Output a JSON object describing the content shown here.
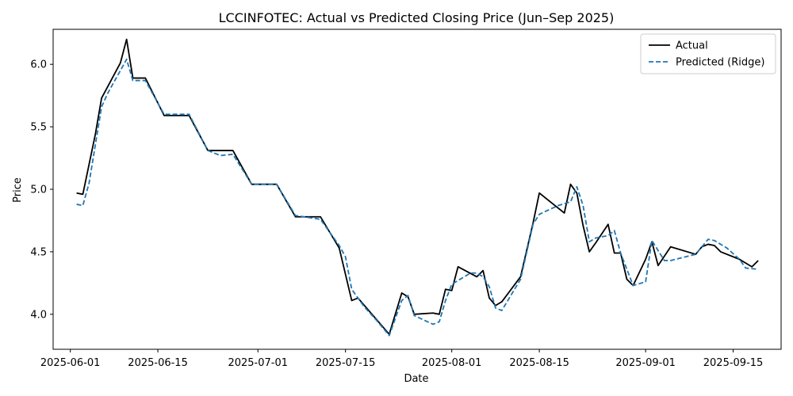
{
  "chart_data": {
    "type": "line",
    "title": "LCCINFOTEC: Actual vs Predicted Closing Price (Jun–Sep 2025)",
    "xlabel": "Date",
    "ylabel": "Price",
    "xlim": [
      "2025-05-29T06:00",
      "2025-09-22T16:00"
    ],
    "ylim": [
      3.72,
      6.28
    ],
    "x_ticks": [
      {
        "date": "2025-06-01",
        "label": "2025-06-01"
      },
      {
        "date": "2025-06-15",
        "label": "2025-06-15"
      },
      {
        "date": "2025-07-01",
        "label": "2025-07-01"
      },
      {
        "date": "2025-07-15",
        "label": "2025-07-15"
      },
      {
        "date": "2025-08-01",
        "label": "2025-08-01"
      },
      {
        "date": "2025-08-15",
        "label": "2025-08-15"
      },
      {
        "date": "2025-09-01",
        "label": "2025-09-01"
      },
      {
        "date": "2025-09-15",
        "label": "2025-09-15"
      }
    ],
    "y_ticks": [
      {
        "value": 4.0,
        "label": "4.0"
      },
      {
        "value": 4.5,
        "label": "4.5"
      },
      {
        "value": 5.0,
        "label": "5.0"
      },
      {
        "value": 5.5,
        "label": "5.5"
      },
      {
        "value": 6.0,
        "label": "6.0"
      }
    ],
    "grid": false,
    "legend_position": "top-right",
    "series": [
      {
        "name": "Actual",
        "color": "#000000",
        "dash": "solid",
        "points": [
          [
            "2025-06-02",
            4.97
          ],
          [
            "2025-06-03",
            4.96
          ],
          [
            "2025-06-05",
            5.44
          ],
          [
            "2025-06-06",
            5.73
          ],
          [
            "2025-06-09",
            6.01
          ],
          [
            "2025-06-10",
            6.2
          ],
          [
            "2025-06-11",
            5.89
          ],
          [
            "2025-06-13",
            5.89
          ],
          [
            "2025-06-16",
            5.59
          ],
          [
            "2025-06-20",
            5.59
          ],
          [
            "2025-06-23",
            5.31
          ],
          [
            "2025-06-27",
            5.31
          ],
          [
            "2025-06-30",
            5.04
          ],
          [
            "2025-07-04",
            5.04
          ],
          [
            "2025-07-07",
            4.78
          ],
          [
            "2025-07-11",
            4.78
          ],
          [
            "2025-07-14",
            4.53
          ],
          [
            "2025-07-16",
            4.11
          ],
          [
            "2025-07-17",
            4.13
          ],
          [
            "2025-07-22",
            3.84
          ],
          [
            "2025-07-24",
            4.17
          ],
          [
            "2025-07-25",
            4.14
          ],
          [
            "2025-07-26",
            4.0
          ],
          [
            "2025-07-29",
            4.01
          ],
          [
            "2025-07-30",
            4.0
          ],
          [
            "2025-07-31",
            4.2
          ],
          [
            "2025-08-01",
            4.19
          ],
          [
            "2025-08-02",
            4.38
          ],
          [
            "2025-08-05",
            4.3
          ],
          [
            "2025-08-06",
            4.35
          ],
          [
            "2025-08-07",
            4.13
          ],
          [
            "2025-08-08",
            4.07
          ],
          [
            "2025-08-09",
            4.1
          ],
          [
            "2025-08-12",
            4.3
          ],
          [
            "2025-08-14",
            4.73
          ],
          [
            "2025-08-15",
            4.97
          ],
          [
            "2025-08-19",
            4.81
          ],
          [
            "2025-08-20",
            5.04
          ],
          [
            "2025-08-21",
            4.97
          ],
          [
            "2025-08-22",
            4.71
          ],
          [
            "2025-08-23",
            4.5
          ],
          [
            "2025-08-24",
            4.57
          ],
          [
            "2025-08-26",
            4.72
          ],
          [
            "2025-08-27",
            4.49
          ],
          [
            "2025-08-28",
            4.49
          ],
          [
            "2025-08-29",
            4.28
          ],
          [
            "2025-08-30",
            4.23
          ],
          [
            "2025-09-01",
            4.44
          ],
          [
            "2025-09-02",
            4.58
          ],
          [
            "2025-09-03",
            4.39
          ],
          [
            "2025-09-05",
            4.54
          ],
          [
            "2025-09-09",
            4.48
          ],
          [
            "2025-09-10",
            4.54
          ],
          [
            "2025-09-11",
            4.56
          ],
          [
            "2025-09-12",
            4.55
          ],
          [
            "2025-09-13",
            4.5
          ],
          [
            "2025-09-16",
            4.44
          ],
          [
            "2025-09-17",
            4.41
          ],
          [
            "2025-09-18",
            4.38
          ],
          [
            "2025-09-19",
            4.43
          ]
        ]
      },
      {
        "name": "Predicted (Ridge)",
        "color": "#1f77b4",
        "dash": "dashed",
        "points": [
          [
            "2025-06-02",
            4.88
          ],
          [
            "2025-06-03",
            4.87
          ],
          [
            "2025-06-04",
            5.05
          ],
          [
            "2025-06-06",
            5.66
          ],
          [
            "2025-06-07",
            5.77
          ],
          [
            "2025-06-10",
            6.04
          ],
          [
            "2025-06-11",
            5.87
          ],
          [
            "2025-06-13",
            5.87
          ],
          [
            "2025-06-16",
            5.6
          ],
          [
            "2025-06-20",
            5.6
          ],
          [
            "2025-06-23",
            5.31
          ],
          [
            "2025-06-25",
            5.27
          ],
          [
            "2025-06-27",
            5.28
          ],
          [
            "2025-06-30",
            5.04
          ],
          [
            "2025-07-04",
            5.04
          ],
          [
            "2025-07-07",
            4.79
          ],
          [
            "2025-07-11",
            4.76
          ],
          [
            "2025-07-14",
            4.55
          ],
          [
            "2025-07-15",
            4.46
          ],
          [
            "2025-07-16",
            4.2
          ],
          [
            "2025-07-18",
            4.06
          ],
          [
            "2025-07-20",
            3.95
          ],
          [
            "2025-07-22",
            3.83
          ],
          [
            "2025-07-24",
            4.11
          ],
          [
            "2025-07-25",
            4.15
          ],
          [
            "2025-07-26",
            3.99
          ],
          [
            "2025-07-29",
            3.92
          ],
          [
            "2025-07-30",
            3.94
          ],
          [
            "2025-07-31",
            4.11
          ],
          [
            "2025-08-01",
            4.24
          ],
          [
            "2025-08-02",
            4.27
          ],
          [
            "2025-08-04",
            4.33
          ],
          [
            "2025-08-05",
            4.33
          ],
          [
            "2025-08-06",
            4.3
          ],
          [
            "2025-08-07",
            4.22
          ],
          [
            "2025-08-08",
            4.05
          ],
          [
            "2025-08-09",
            4.03
          ],
          [
            "2025-08-12",
            4.28
          ],
          [
            "2025-08-14",
            4.72
          ],
          [
            "2025-08-15",
            4.8
          ],
          [
            "2025-08-18",
            4.87
          ],
          [
            "2025-08-20",
            4.9
          ],
          [
            "2025-08-21",
            5.02
          ],
          [
            "2025-08-22",
            4.87
          ],
          [
            "2025-08-23",
            4.58
          ],
          [
            "2025-08-24",
            4.61
          ],
          [
            "2025-08-26",
            4.63
          ],
          [
            "2025-08-27",
            4.67
          ],
          [
            "2025-08-28",
            4.49
          ],
          [
            "2025-08-30",
            4.23
          ],
          [
            "2025-09-01",
            4.26
          ],
          [
            "2025-09-02",
            4.59
          ],
          [
            "2025-09-04",
            4.43
          ],
          [
            "2025-09-05",
            4.43
          ],
          [
            "2025-09-09",
            4.48
          ],
          [
            "2025-09-11",
            4.6
          ],
          [
            "2025-09-12",
            4.59
          ],
          [
            "2025-09-14",
            4.53
          ],
          [
            "2025-09-16",
            4.44
          ],
          [
            "2025-09-17",
            4.37
          ],
          [
            "2025-09-19",
            4.36
          ]
        ]
      }
    ]
  }
}
